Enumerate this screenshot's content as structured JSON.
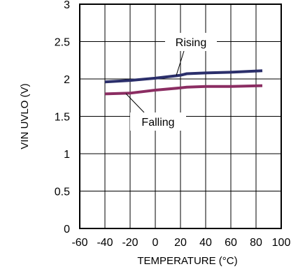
{
  "chart_data": {
    "type": "line",
    "xlabel": "TEMPERATURE (°C)",
    "ylabel": "VIN UVLO (V)",
    "xlim": [
      -60,
      100
    ],
    "ylim": [
      0,
      3
    ],
    "x_ticks": [
      -60,
      -40,
      -20,
      0,
      20,
      40,
      60,
      80,
      100
    ],
    "y_ticks": [
      0,
      0.5,
      1,
      1.5,
      2,
      2.5,
      3
    ],
    "x_tick_labels": [
      "-60",
      "-40",
      "-20",
      "0",
      "20",
      "40",
      "60",
      "80",
      "100"
    ],
    "y_tick_labels": [
      "0",
      "0.5",
      "1",
      "1.5",
      "2",
      "2.5",
      "3"
    ],
    "grid": true,
    "series": [
      {
        "name": "Rising",
        "color": "#2b2f6b",
        "x": [
          -40,
          -20,
          0,
          20,
          25,
          40,
          60,
          85
        ],
        "y": [
          1.96,
          1.98,
          2.01,
          2.05,
          2.07,
          2.08,
          2.09,
          2.11
        ]
      },
      {
        "name": "Falling",
        "color": "#8b2d62",
        "x": [
          -40,
          -20,
          0,
          20,
          25,
          40,
          60,
          85
        ],
        "y": [
          1.8,
          1.81,
          1.85,
          1.88,
          1.89,
          1.9,
          1.9,
          1.91
        ]
      }
    ],
    "annotations": [
      {
        "text": "Rising",
        "series": "Rising"
      },
      {
        "text": "Falling",
        "series": "Falling"
      }
    ]
  }
}
